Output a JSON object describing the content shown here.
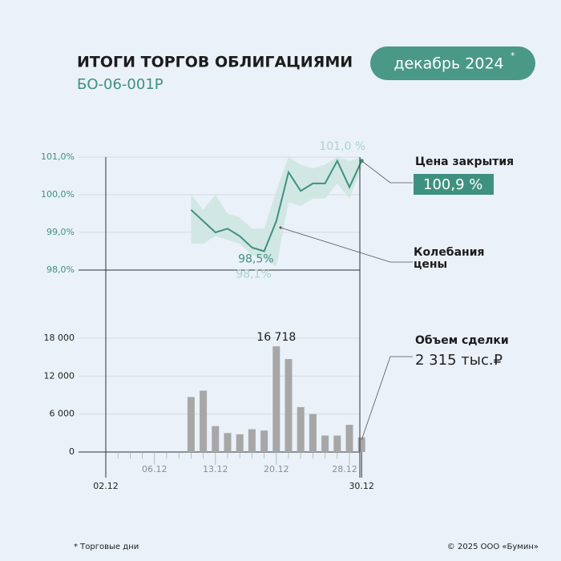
{
  "header": {
    "title": "ИТОГИ ТОРГОВ ОБЛИГАЦИЯМИ",
    "subtitle": "БО-06-001Р",
    "badge": "декабрь 2024",
    "badge_mark": "*"
  },
  "footer": {
    "note": "* Торговые дни",
    "copyright": "© 2025 ООО «Бумин»"
  },
  "chart_data": [
    {
      "type": "line",
      "series": [
        {
          "name": "Цена закрытия",
          "color": "#3f917f",
          "values": [
            null,
            null,
            null,
            null,
            null,
            null,
            null,
            99.6,
            99.3,
            99.0,
            99.1,
            98.9,
            98.6,
            98.5,
            99.3,
            100.6,
            100.1,
            100.3,
            100.3,
            100.9,
            100.2,
            100.9
          ],
          "value_labels": [
            null,
            null,
            null,
            null,
            null,
            null,
            null,
            null,
            null,
            null,
            null,
            null,
            null,
            "98,5%",
            null,
            null,
            null,
            null,
            null,
            null,
            null,
            "100,9 %"
          ]
        }
      ],
      "band": {
        "name": "Колебания цены",
        "color": "#cde5e1",
        "high": [
          null,
          null,
          null,
          null,
          null,
          null,
          null,
          100.0,
          99.6,
          100.0,
          99.5,
          99.4,
          99.1,
          99.1,
          100.1,
          101.0,
          100.8,
          100.7,
          100.8,
          101.0,
          100.9,
          101.0
        ],
        "low": [
          null,
          null,
          null,
          null,
          null,
          null,
          null,
          98.7,
          98.7,
          98.9,
          98.8,
          98.7,
          98.4,
          98.3,
          98.1,
          99.8,
          99.7,
          99.9,
          99.9,
          100.3,
          99.9,
          100.7
        ],
        "high_labels": [
          null,
          null,
          null,
          null,
          null,
          null,
          null,
          null,
          null,
          null,
          null,
          null,
          null,
          null,
          null,
          null,
          null,
          null,
          null,
          null,
          null,
          "101,0 %"
        ],
        "low_labels": [
          null,
          null,
          null,
          null,
          null,
          null,
          null,
          null,
          null,
          null,
          null,
          null,
          null,
          null,
          "98,1%",
          null,
          null,
          null,
          null,
          null,
          null,
          null
        ]
      },
      "ylim": [
        98,
        101
      ],
      "yticks": [
        {
          "value": 98,
          "label": "98,0%"
        },
        {
          "value": 99,
          "label": "99,0%"
        },
        {
          "value": 100,
          "label": "100,0%"
        },
        {
          "value": 101,
          "label": "101,0%"
        }
      ],
      "grid": true
    },
    {
      "type": "bar",
      "name": "Объем сделки",
      "color": "#a7a7a7",
      "categories": [
        "02.12",
        null,
        null,
        null,
        "06.12",
        null,
        null,
        null,
        null,
        "13.12",
        null,
        null,
        null,
        null,
        "20.12",
        null,
        null,
        null,
        null,
        null,
        "28.12",
        "30.12"
      ],
      "values": [
        null,
        null,
        null,
        null,
        null,
        null,
        null,
        8700,
        9700,
        4100,
        3000,
        2800,
        3600,
        3400,
        16718,
        14700,
        7100,
        6000,
        2600,
        2600,
        4300,
        2315
      ],
      "value_labels": [
        null,
        null,
        null,
        null,
        null,
        null,
        null,
        null,
        null,
        null,
        null,
        null,
        null,
        null,
        "16 718",
        null,
        null,
        null,
        null,
        null,
        null,
        "2 315 тыс.₽"
      ],
      "ylim": [
        0,
        18000
      ],
      "yticks": [
        0,
        {
          "value": 6000,
          "label": "6 000"
        },
        {
          "value": 12000,
          "label": "12 000"
        },
        {
          "value": 18000,
          "label": "18 000"
        }
      ],
      "grid": true
    }
  ]
}
